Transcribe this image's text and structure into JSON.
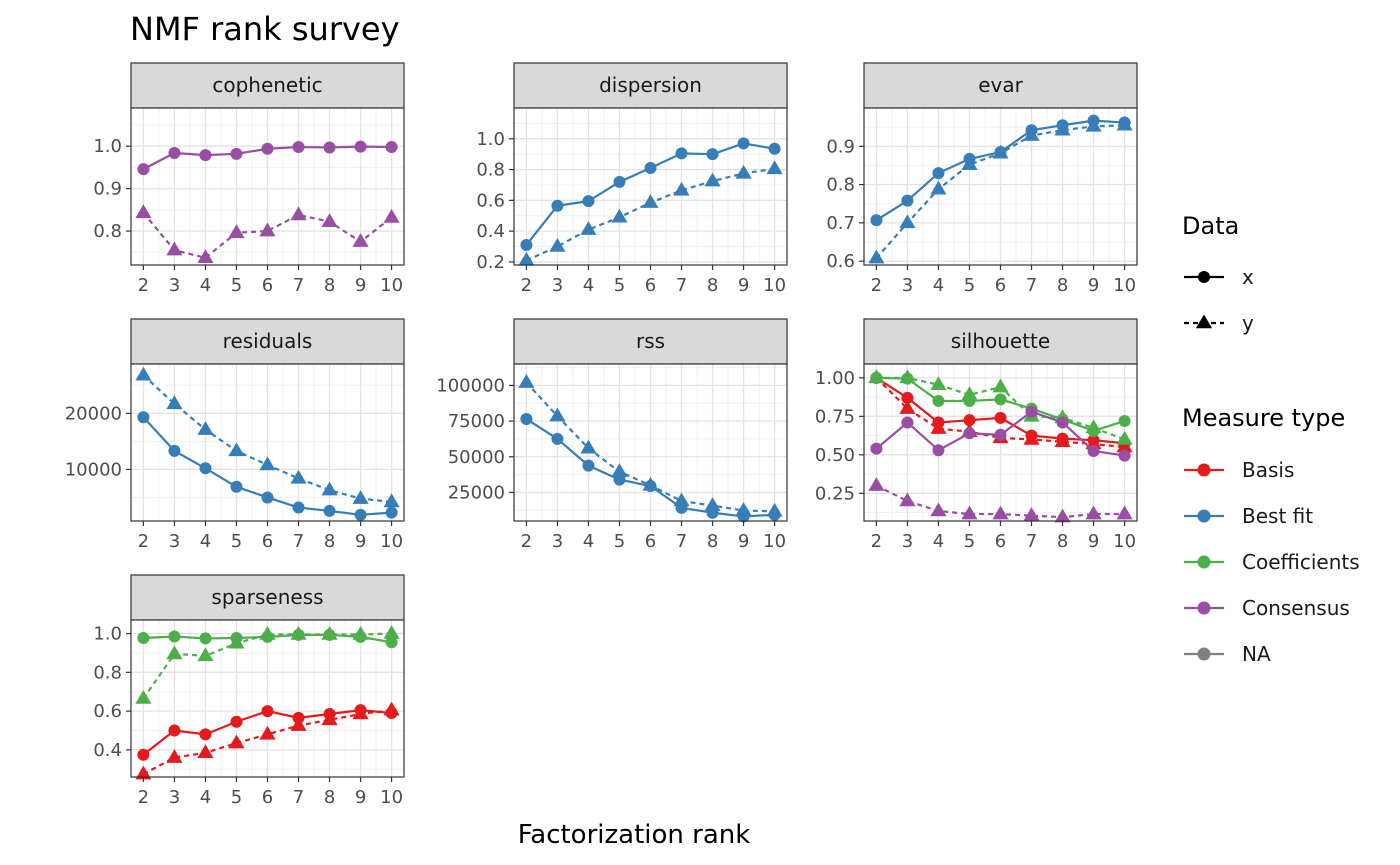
{
  "chart_data": {
    "type": "line",
    "title": "NMF rank survey",
    "xlabel": "Factorization rank",
    "x": [
      2,
      3,
      4,
      5,
      6,
      7,
      8,
      9,
      10
    ],
    "grid": true,
    "colors": {
      "Basis": "#e41a1c",
      "Best fit": "#377eb8",
      "Coefficients": "#4daf4a",
      "Consensus": "#984ea3",
      "NA": "#808080"
    },
    "legend": {
      "placement": "right",
      "data_title": "Data",
      "data_entries": [
        {
          "label": "x",
          "linetype": "solid",
          "shape": "circle"
        },
        {
          "label": "y",
          "linetype": "dashed",
          "shape": "triangle"
        }
      ],
      "measure_title": "Measure type",
      "measure_entries": [
        "Basis",
        "Best fit",
        "Coefficients",
        "Consensus",
        "NA"
      ]
    },
    "panels": [
      {
        "name": "cophenetic",
        "ylim": [
          0.72,
          1.09
        ],
        "yticks": [
          {
            "v": 0.8,
            "label": "0.8"
          },
          {
            "v": 0.9,
            "label": "0.9"
          },
          {
            "v": 1.0,
            "label": "1.0"
          }
        ],
        "series": [
          {
            "measure": "Consensus",
            "data": "x",
            "values": [
              0.946,
              0.984,
              0.979,
              0.982,
              0.994,
              0.998,
              0.997,
              0.999,
              0.998
            ]
          },
          {
            "measure": "Consensus",
            "data": "y",
            "values": [
              0.843,
              0.755,
              0.737,
              0.796,
              0.8,
              0.838,
              0.822,
              0.775,
              0.832
            ]
          }
        ]
      },
      {
        "name": "dispersion",
        "ylim": [
          0.18,
          1.2
        ],
        "yticks": [
          {
            "v": 0.2,
            "label": "0.2"
          },
          {
            "v": 0.4,
            "label": "0.4"
          },
          {
            "v": 0.6,
            "label": "0.6"
          },
          {
            "v": 0.8,
            "label": "0.8"
          },
          {
            "v": 1.0,
            "label": "1.0"
          }
        ],
        "series": [
          {
            "measure": "Best fit",
            "data": "x",
            "values": [
              0.31,
              0.565,
              0.595,
              0.72,
              0.81,
              0.905,
              0.9,
              0.97,
              0.935
            ]
          },
          {
            "measure": "Best fit",
            "data": "y",
            "values": [
              0.21,
              0.3,
              0.41,
              0.49,
              0.585,
              0.665,
              0.725,
              0.775,
              0.805
            ]
          }
        ]
      },
      {
        "name": "evar",
        "ylim": [
          0.59,
          1.0
        ],
        "yticks": [
          {
            "v": 0.6,
            "label": "0.6"
          },
          {
            "v": 0.7,
            "label": "0.7"
          },
          {
            "v": 0.8,
            "label": "0.8"
          },
          {
            "v": 0.9,
            "label": "0.9"
          }
        ],
        "series": [
          {
            "measure": "Best fit",
            "data": "x",
            "values": [
              0.707,
              0.758,
              0.83,
              0.867,
              0.885,
              0.942,
              0.955,
              0.967,
              0.962
            ]
          },
          {
            "measure": "Best fit",
            "data": "y",
            "values": [
              0.608,
              0.7,
              0.788,
              0.852,
              0.882,
              0.928,
              0.942,
              0.952,
              0.955
            ]
          }
        ]
      },
      {
        "name": "residuals",
        "ylim": [
          800,
          28800
        ],
        "yticks": [
          {
            "v": 10000,
            "label": "10000"
          },
          {
            "v": 20000,
            "label": "20000"
          }
        ],
        "series": [
          {
            "measure": "Best fit",
            "data": "x",
            "values": [
              19300,
              13300,
              10200,
              6900,
              5000,
              3200,
              2600,
              1900,
              2300
            ]
          },
          {
            "measure": "Best fit",
            "data": "y",
            "values": [
              26800,
              21700,
              17100,
              13300,
              10800,
              8400,
              6300,
              4800,
              4200
            ]
          }
        ]
      },
      {
        "name": "rss",
        "ylim": [
          5000,
          115000
        ],
        "yticks": [
          {
            "v": 25000,
            "label": "25000"
          },
          {
            "v": 50000,
            "label": "50000"
          },
          {
            "v": 75000,
            "label": "75000"
          },
          {
            "v": 100000,
            "label": "100000"
          }
        ],
        "series": [
          {
            "measure": "Best fit",
            "data": "x",
            "values": [
              76500,
              62500,
              43800,
              34000,
              29500,
              14200,
              10800,
              8200,
              9400
            ]
          },
          {
            "measure": "Best fit",
            "data": "y",
            "values": [
              102000,
              78500,
              56000,
              39500,
              30000,
              19000,
              15800,
              12300,
              11800
            ]
          }
        ]
      },
      {
        "name": "silhouette",
        "ylim": [
          0.07,
          1.09
        ],
        "yticks": [
          {
            "v": 0.25,
            "label": "0.25"
          },
          {
            "v": 0.5,
            "label": "0.50"
          },
          {
            "v": 0.75,
            "label": "0.75"
          },
          {
            "v": 1.0,
            "label": "1.00"
          }
        ],
        "series": [
          {
            "measure": "Basis",
            "data": "x",
            "values": [
              1.0,
              0.87,
              0.71,
              0.725,
              0.74,
              0.625,
              0.605,
              0.595,
              0.575
            ]
          },
          {
            "measure": "Basis",
            "data": "y",
            "values": [
              1.0,
              0.8,
              0.67,
              0.65,
              0.61,
              0.6,
              0.585,
              0.57,
              0.55
            ]
          },
          {
            "measure": "Coefficients",
            "data": "x",
            "values": [
              1.0,
              0.995,
              0.85,
              0.85,
              0.86,
              0.8,
              0.73,
              0.655,
              0.72
            ]
          },
          {
            "measure": "Coefficients",
            "data": "y",
            "values": [
              1.0,
              1.0,
              0.955,
              0.89,
              0.94,
              0.75,
              0.74,
              0.675,
              0.6
            ]
          },
          {
            "measure": "Consensus",
            "data": "x",
            "values": [
              0.54,
              0.71,
              0.53,
              0.64,
              0.63,
              0.78,
              0.71,
              0.525,
              0.495
            ]
          },
          {
            "measure": "Consensus",
            "data": "y",
            "values": [
              0.3,
              0.2,
              0.135,
              0.115,
              0.115,
              0.105,
              0.095,
              0.115,
              0.115
            ]
          }
        ]
      },
      {
        "name": "sparseness",
        "ylim": [
          0.26,
          1.07
        ],
        "yticks": [
          {
            "v": 0.4,
            "label": "0.4"
          },
          {
            "v": 0.6,
            "label": "0.6"
          },
          {
            "v": 0.8,
            "label": "0.8"
          },
          {
            "v": 1.0,
            "label": "1.0"
          }
        ],
        "series": [
          {
            "measure": "Coefficients",
            "data": "x",
            "values": [
              0.977,
              0.985,
              0.975,
              0.977,
              0.983,
              0.993,
              0.993,
              0.983,
              0.955
            ]
          },
          {
            "measure": "Coefficients",
            "data": "y",
            "values": [
              0.665,
              0.895,
              0.885,
              0.95,
              0.995,
              0.995,
              0.995,
              0.995,
              1.0
            ]
          },
          {
            "measure": "Basis",
            "data": "x",
            "values": [
              0.375,
              0.5,
              0.48,
              0.545,
              0.6,
              0.565,
              0.585,
              0.605,
              0.59
            ]
          },
          {
            "measure": "Basis",
            "data": "y",
            "values": [
              0.275,
              0.36,
              0.385,
              0.435,
              0.48,
              0.525,
              0.555,
              0.585,
              0.605
            ]
          }
        ]
      }
    ]
  }
}
